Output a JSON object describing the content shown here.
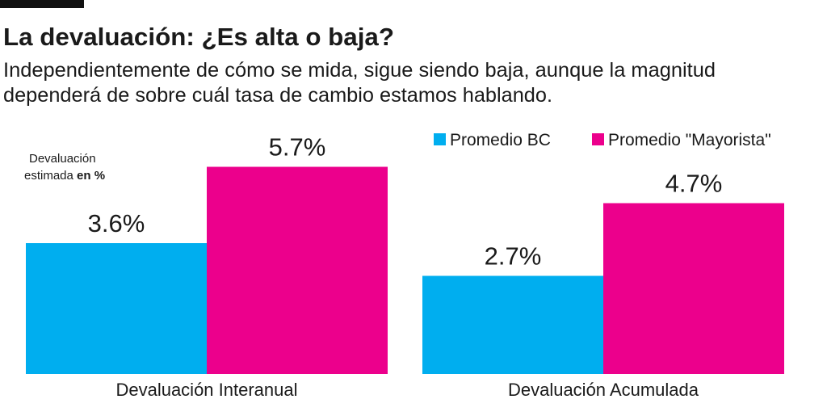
{
  "chart_data": {
    "type": "bar",
    "title": "La devaluación: ¿Es alta o baja?",
    "subtitle": [
      "Independientemente de cómo se mida, sigue siendo baja, aunque la magnitud",
      "dependerá de sobre cuál tasa de cambio estamos hablando."
    ],
    "y_label": "Devaluación",
    "y_label_2": "estimada",
    "y_unit": "en %",
    "categories": [
      "Devaluación Interanual",
      "Devaluación Acumulada"
    ],
    "series": [
      {
        "name": "Promedio BC",
        "color": "#00aeef",
        "values": [
          3.6,
          2.7
        ],
        "value_labels": [
          "3.6%",
          "2.7%"
        ]
      },
      {
        "name": "Promedio \"Mayorista\"",
        "color": "#ec008c",
        "values": [
          5.7,
          4.7
        ],
        "value_labels": [
          "5.7%",
          "4.7%"
        ]
      }
    ],
    "legend": "top-right"
  }
}
